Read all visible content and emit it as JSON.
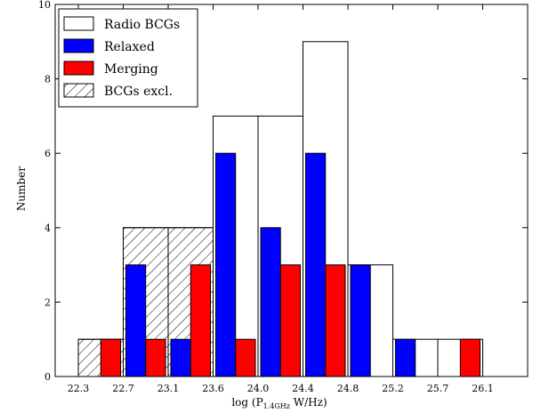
{
  "chart_data": {
    "type": "bar",
    "title": "",
    "xlabel": "log (P",
    "xlabel_sub": "1.4GHz",
    "xlabel_suffix": " W/Hz)",
    "ylabel": "Number",
    "xlim": [
      22.1,
      26.5
    ],
    "ylim": [
      0,
      10
    ],
    "yticks": [
      "0",
      "2",
      "4",
      "6",
      "8",
      "10"
    ],
    "ytick_values": [
      0,
      2,
      4,
      6,
      8,
      10
    ],
    "xticks": [
      "22.3",
      "22.7",
      "23.1",
      "23.6",
      "24.0",
      "24.4",
      "24.8",
      "25.2",
      "25.7",
      "26.1"
    ],
    "xtick_values": [
      22.3,
      22.7,
      23.1,
      23.6,
      24.0,
      24.4,
      24.8,
      25.2,
      25.7,
      26.1
    ],
    "bin_edges": [
      22.3,
      22.7,
      23.1,
      23.6,
      24.0,
      24.4,
      24.8,
      25.2,
      25.7,
      26.1
    ],
    "series": [
      {
        "name": "Radio BCGs",
        "style": "outline",
        "color": "#ffffff",
        "values": [
          1,
          4,
          4,
          7,
          7,
          9,
          3,
          1,
          1
        ]
      },
      {
        "name": "Relaxed",
        "style": "left",
        "color": "#0000ff",
        "values": [
          0,
          3,
          1,
          6,
          4,
          6,
          3,
          1,
          0
        ]
      },
      {
        "name": "Merging",
        "style": "right",
        "color": "#ff0000",
        "values": [
          1,
          1,
          3,
          1,
          3,
          3,
          0,
          0,
          1
        ]
      },
      {
        "name": "BCGs excl.",
        "style": "hatch",
        "color": "#ffffff",
        "values": [
          1,
          4,
          4,
          0,
          0,
          0,
          0,
          0,
          0
        ]
      }
    ],
    "legend": "top-left",
    "grid": false
  }
}
